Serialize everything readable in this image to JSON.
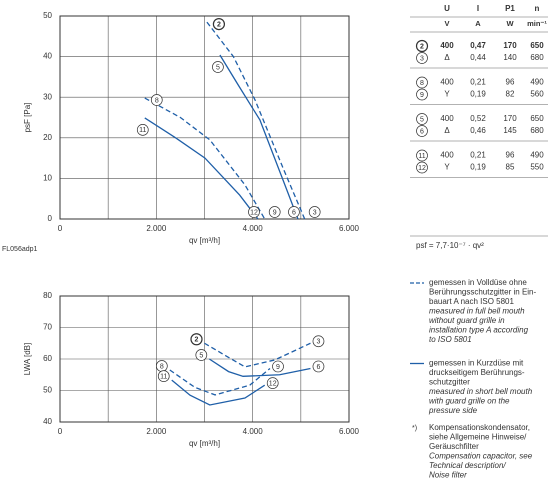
{
  "chart_data": [
    {
      "type": "line",
      "ylabel": "psF [Pa]",
      "xlabel": "qv [m³/h]",
      "code": "FL056adp1",
      "xlim": [
        0,
        6000
      ],
      "xticks": [
        0,
        {
          "value": 2000,
          "label": "2.000"
        },
        {
          "value": 4000,
          "label": "4.000"
        },
        {
          "value": 6000,
          "label": "6.000"
        }
      ],
      "xminorticks": [
        1000,
        3000,
        5000
      ],
      "ylim": [
        0,
        50
      ],
      "yticks": [
        0,
        10,
        20,
        30,
        40,
        50
      ],
      "grid": true,
      "series": [
        {
          "name": "2",
          "end_label": "3",
          "dashed": true,
          "color": "#1f5fa8",
          "x": [
            3050,
            3600,
            4050,
            4650,
            5080
          ],
          "values": [
            48.5,
            40,
            29.3,
            12,
            0
          ]
        },
        {
          "name": "5",
          "end_label": "6",
          "dashed": false,
          "color": "#1f5fa8",
          "x": [
            3320,
            3700,
            4150,
            4650,
            4940
          ],
          "values": [
            40.4,
            33,
            24.4,
            9,
            0
          ]
        },
        {
          "name": "8",
          "end_label": "9",
          "dashed": true,
          "color": "#1f5fa8",
          "x": [
            1760,
            2500,
            3110,
            3840,
            4250
          ],
          "values": [
            29.8,
            25,
            19.5,
            8.4,
            0
          ]
        },
        {
          "name": "11",
          "end_label": "12",
          "dashed": false,
          "color": "#1f5fa8",
          "x": [
            1760,
            2400,
            3010,
            3730,
            4110
          ],
          "values": [
            24.9,
            20,
            15,
            5.9,
            0
          ]
        }
      ]
    },
    {
      "type": "line",
      "ylabel": "LWA [dB]",
      "xlabel": "qv [m³/h]",
      "xlim": [
        0,
        6000
      ],
      "xticks": [
        0,
        {
          "value": 2000,
          "label": "2.000"
        },
        {
          "value": 4000,
          "label": "4.000"
        },
        {
          "value": 6000,
          "label": "6.000"
        }
      ],
      "xminorticks": [
        1000,
        3000,
        5000
      ],
      "ylim": [
        40,
        80
      ],
      "yticks": [
        40,
        50,
        60,
        70,
        80
      ],
      "grid": true,
      "series": [
        {
          "name": "2",
          "end_label": "3",
          "dashed": true,
          "color": "#1f5fa8",
          "x": [
            3000,
            3500,
            3840,
            4460,
            5200
          ],
          "values": [
            65,
            60.5,
            57.5,
            59.7,
            65
          ]
        },
        {
          "name": "5",
          "end_label": "6",
          "dashed": false,
          "color": "#1f5fa8",
          "x": [
            3100,
            3500,
            3800,
            4560,
            5200
          ],
          "values": [
            60,
            56,
            54.5,
            55,
            57
          ]
        },
        {
          "name": "8",
          "end_label": "9",
          "dashed": true,
          "color": "#1f5fa8",
          "x": [
            2280,
            2800,
            3220,
            3940,
            4360
          ],
          "values": [
            56.5,
            51,
            48.6,
            51.7,
            57
          ]
        },
        {
          "name": "11",
          "end_label": "12",
          "dashed": false,
          "color": "#1f5fa8",
          "x": [
            2320,
            2700,
            3110,
            3840,
            4250
          ],
          "values": [
            53.3,
            48.5,
            45.4,
            47.6,
            51.7
          ]
        }
      ]
    }
  ],
  "table": {
    "header": [
      "U",
      "I",
      "P1",
      "n"
    ],
    "units": [
      "V",
      "A",
      "W",
      "min⁻¹"
    ],
    "rows": [
      [
        "2",
        "400",
        "0,47",
        "170",
        "650"
      ],
      [
        "3",
        "Δ",
        "0,44",
        "140",
        "680"
      ],
      [
        "8",
        "400",
        "0,21",
        "96",
        "490"
      ],
      [
        "9",
        "Y",
        "0,19",
        "82",
        "560"
      ],
      [
        "5",
        "400",
        "0,52",
        "170",
        "650"
      ],
      [
        "6",
        "Δ",
        "0,46",
        "145",
        "680"
      ],
      [
        "11",
        "400",
        "0,21",
        "96",
        "490"
      ],
      [
        "12",
        "Y",
        "0,19",
        "85",
        "550"
      ]
    ]
  },
  "formula": "psf = 7,7·10⁻⁷ · qv²",
  "notes": [
    {
      "dashed": true,
      "de": [
        "gemessen in Volldüse ohne",
        "Berührungsschutzgitter in Ein-",
        "bauart A nach ISO 5801"
      ],
      "en": [
        "measured in full bell mouth",
        "without guard grille in",
        "installation type A according",
        "to ISO 5801"
      ]
    },
    {
      "dashed": false,
      "de": [
        "gemessen in Kurzdüse mit",
        "druckseitigem Berührungs-",
        "schutzgitter"
      ],
      "en": [
        "measured in short bell mouth",
        "with guard grille on the",
        "pressure side"
      ]
    }
  ],
  "footnote": {
    "mark": "*)",
    "de": [
      "Kompensationskondensator,",
      "siehe Allgemeine Hinweise/",
      "Geräuschfilter"
    ],
    "en": [
      "Compensation capacitor, see",
      "Technical description/",
      "Noise filter"
    ]
  }
}
